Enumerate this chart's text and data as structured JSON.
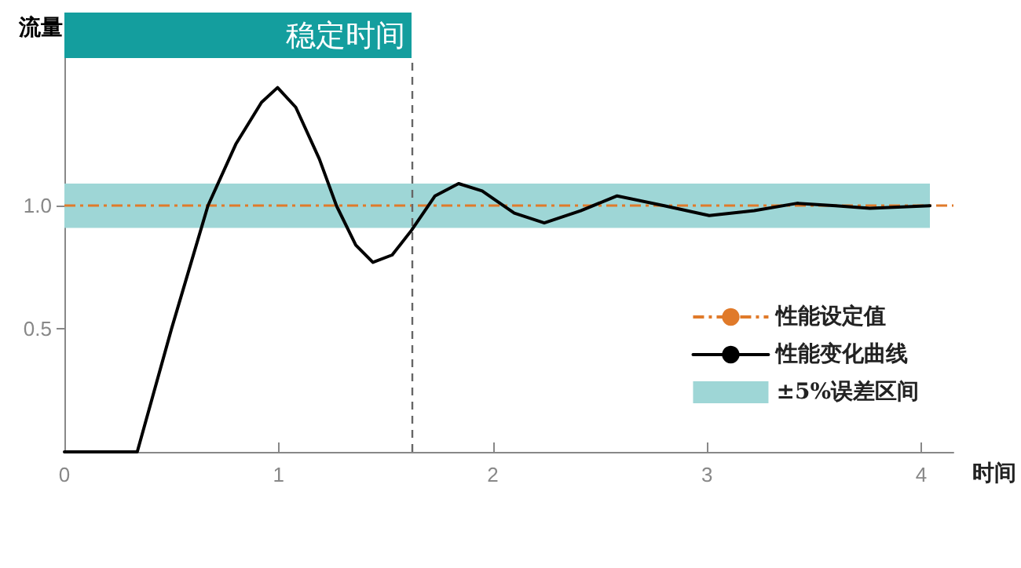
{
  "chart_data": {
    "type": "line",
    "xlabel": "时间",
    "ylabel": "流量",
    "x": [
      0,
      0.34,
      0.5,
      0.67,
      0.8,
      0.92,
      0.995,
      1.08,
      1.19,
      1.27,
      1.36,
      1.44,
      1.53,
      1.62,
      1.73,
      1.84,
      1.95,
      2.1,
      2.24,
      2.41,
      2.58,
      2.8,
      3.01,
      3.22,
      3.42,
      3.6,
      3.76,
      4.04
    ],
    "series": [
      {
        "name": "性能变化曲线",
        "color": "#000000",
        "values": [
          0,
          0,
          0.5,
          1.0,
          1.25,
          1.42,
          1.48,
          1.4,
          1.19,
          1.0,
          0.84,
          0.77,
          0.8,
          0.9,
          1.04,
          1.09,
          1.06,
          0.97,
          0.93,
          0.98,
          1.04,
          1.0,
          0.96,
          0.98,
          1.01,
          1.0,
          0.99,
          1.0
        ]
      }
    ],
    "xlim": [
      0,
      4.15
    ],
    "xticks": [
      0,
      1,
      2,
      3,
      4
    ],
    "ylim": [
      0,
      1.6
    ],
    "yticks": [
      {
        "value": 0.5,
        "label": "0.5"
      },
      {
        "value": 1,
        "label": "1.0"
      }
    ],
    "ref_lines": [
      {
        "axis": "y",
        "value": 1,
        "label": "性能设定值",
        "color": "#e07a2a",
        "line_style": "dashdot"
      },
      {
        "axis": "x",
        "value": 1.62,
        "label": "稳定时间",
        "color": "#666666",
        "line_style": "dashed"
      }
    ],
    "bands": [
      {
        "axis": "y",
        "from": 0.91,
        "to": 1.09,
        "label": "±5%误差区间",
        "color": "#9ed6d6"
      }
    ],
    "legend": "bottom right",
    "grid": false,
    "marker": "none",
    "line_style": "solid"
  }
}
